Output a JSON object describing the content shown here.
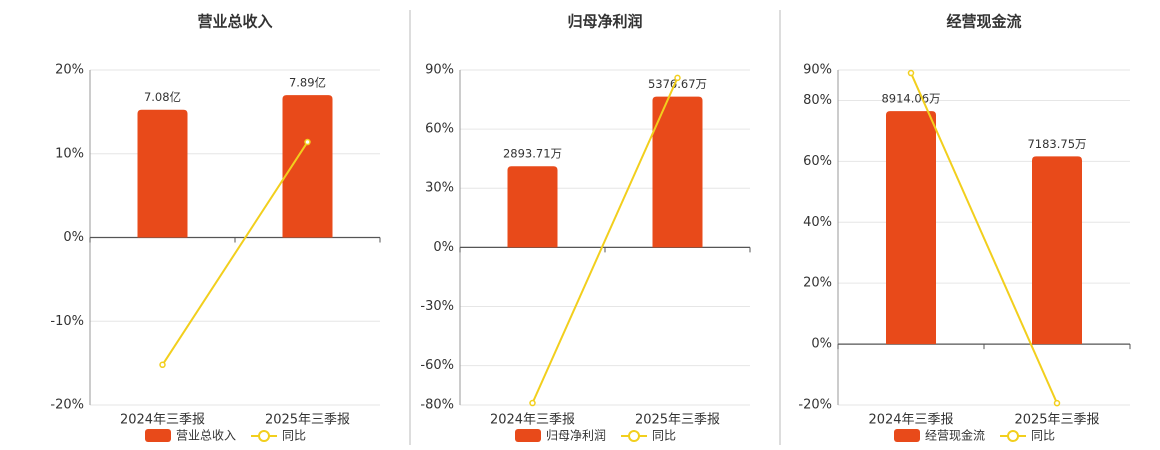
{
  "chart_data": [
    {
      "type": "combo",
      "title": "营业总收入",
      "categories": [
        "2024年三季报",
        "2025年三季报"
      ],
      "series": [
        {
          "name": "营业总收入",
          "type": "bar",
          "color": "#e84a1a",
          "values": [
            7.08,
            7.89
          ],
          "value_labels": [
            "7.08亿",
            "7.89亿"
          ]
        },
        {
          "name": "同比",
          "type": "line",
          "color": "#f2cf1d",
          "values": [
            -15.2,
            11.4
          ]
        }
      ],
      "ylim": [
        -20,
        20
      ],
      "yticks": [
        {
          "value": 20,
          "label": "20%"
        },
        {
          "value": 10,
          "label": "10%"
        },
        {
          "value": 0,
          "label": "0%"
        },
        {
          "value": -10,
          "label": "-10%"
        },
        {
          "value": -20,
          "label": "-20%"
        }
      ],
      "grid": true
    },
    {
      "type": "combo",
      "title": "归母净利润",
      "categories": [
        "2024年三季报",
        "2025年三季报"
      ],
      "series": [
        {
          "name": "归母净利润",
          "type": "bar",
          "color": "#e84a1a",
          "values": [
            2893.71,
            5376.67
          ],
          "value_labels": [
            "2893.71万",
            "5376.67万"
          ]
        },
        {
          "name": "同比",
          "type": "line",
          "color": "#f2cf1d",
          "values": [
            -79,
            86
          ]
        }
      ],
      "ylim": [
        -80,
        90
      ],
      "yticks": [
        {
          "value": 90,
          "label": "90%"
        },
        {
          "value": 60,
          "label": "60%"
        },
        {
          "value": 30,
          "label": "30%"
        },
        {
          "value": 0,
          "label": "0%"
        },
        {
          "value": -30,
          "label": "-30%"
        },
        {
          "value": -60,
          "label": "-60%"
        },
        {
          "value": -80,
          "label": "-80%"
        }
      ],
      "grid": true
    },
    {
      "type": "combo",
      "title": "经营现金流",
      "categories": [
        "2024年三季报",
        "2025年三季报"
      ],
      "series": [
        {
          "name": "经营现金流",
          "type": "bar",
          "color": "#e84a1a",
          "values": [
            8914.06,
            7183.75
          ],
          "value_labels": [
            "8914.06万",
            "7183.75万"
          ]
        },
        {
          "name": "同比",
          "type": "line",
          "color": "#f2cf1d",
          "values": [
            89,
            -19.4
          ]
        }
      ],
      "ylim": [
        -20,
        90
      ],
      "yticks": [
        {
          "value": 90,
          "label": "90%"
        },
        {
          "value": 80,
          "label": "80%"
        },
        {
          "value": 60,
          "label": "60%"
        },
        {
          "value": 40,
          "label": "40%"
        },
        {
          "value": 20,
          "label": "20%"
        },
        {
          "value": 0,
          "label": "0%"
        },
        {
          "value": -20,
          "label": "-20%"
        }
      ],
      "grid": true
    }
  ]
}
